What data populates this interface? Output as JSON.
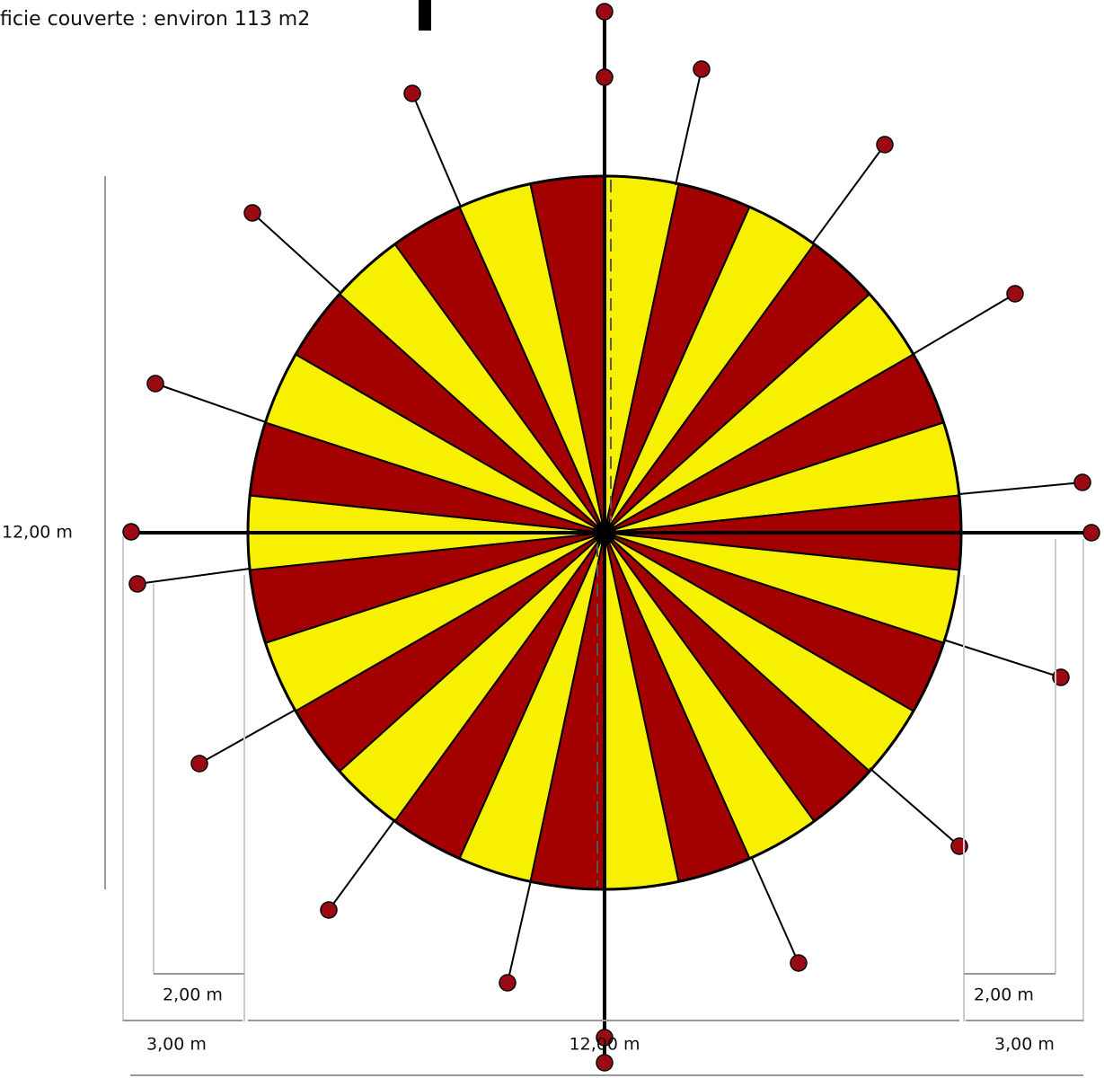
{
  "header": {
    "subtitle": "ficie couverte : environ 113 m2"
  },
  "dimensions": {
    "height": "12,00 m",
    "width": "12,00 m",
    "left_inner": "2,00 m",
    "right_inner": "2,00 m",
    "left_outer": "3,00 m",
    "right_outer": "3,00 m"
  }
}
